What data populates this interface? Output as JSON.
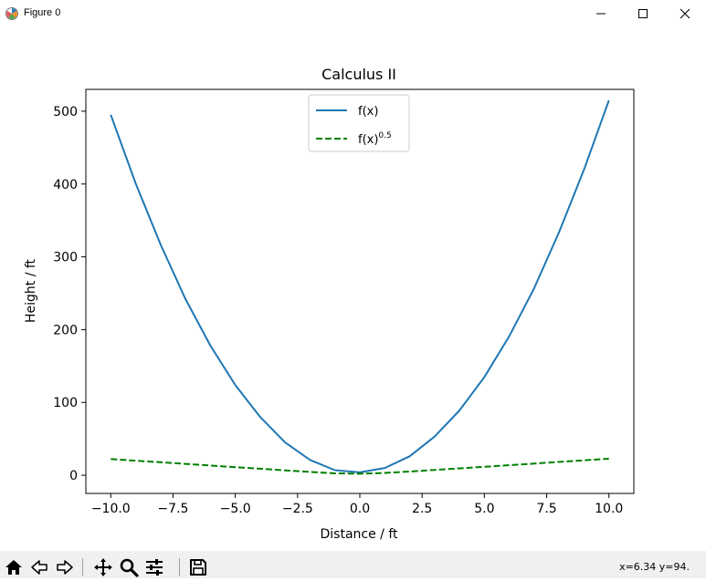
{
  "window": {
    "title": "Figure 0"
  },
  "chart_data": {
    "type": "line",
    "title": "Calculus II",
    "xlabel": "Distance / ft",
    "ylabel": "Height / ft",
    "xlim": [
      -11,
      11
    ],
    "ylim": [
      -25,
      530
    ],
    "xticks": [
      -10.0,
      -7.5,
      -5.0,
      -2.5,
      0.0,
      2.5,
      5.0,
      7.5,
      10.0
    ],
    "xtick_labels": [
      "−10.0",
      "−7.5",
      "−5.0",
      "−2.5",
      "0.0",
      "2.5",
      "5.0",
      "7.5",
      "10.0"
    ],
    "yticks": [
      0,
      100,
      200,
      300,
      400,
      500
    ],
    "ytick_labels": [
      "0",
      "100",
      "200",
      "300",
      "400",
      "500"
    ],
    "grid": false,
    "legend_position": "top-center",
    "series": [
      {
        "name": "f(x)",
        "color": "#1f77b4",
        "style": "solid",
        "x": [
          -10,
          -9,
          -8,
          -7,
          -6,
          -5,
          -4,
          -3,
          -2,
          -1,
          0,
          1,
          2,
          3,
          4,
          5,
          6,
          7,
          8,
          9,
          10
        ],
        "y": [
          495,
          401,
          317,
          242,
          178,
          124,
          80,
          45,
          21,
          7,
          4,
          10,
          26,
          53,
          89,
          135,
          191,
          257,
          334,
          420,
          515
        ]
      },
      {
        "name": "f(x)",
        "legend_superscript": "0.5",
        "color": "#008000",
        "style": "dashed",
        "x": [
          -10,
          -9,
          -8,
          -7,
          -6,
          -5,
          -4,
          -3,
          -2,
          -1,
          0,
          1,
          2,
          3,
          4,
          5,
          6,
          7,
          8,
          9,
          10
        ],
        "y": [
          22.2,
          20.0,
          17.8,
          15.6,
          13.3,
          11.1,
          8.9,
          6.7,
          4.6,
          2.6,
          2.0,
          3.2,
          5.1,
          7.3,
          9.4,
          11.6,
          13.8,
          16.0,
          18.3,
          20.5,
          22.7
        ]
      }
    ]
  },
  "toolbar": {
    "coords_text": "x=6.34 y=94."
  }
}
